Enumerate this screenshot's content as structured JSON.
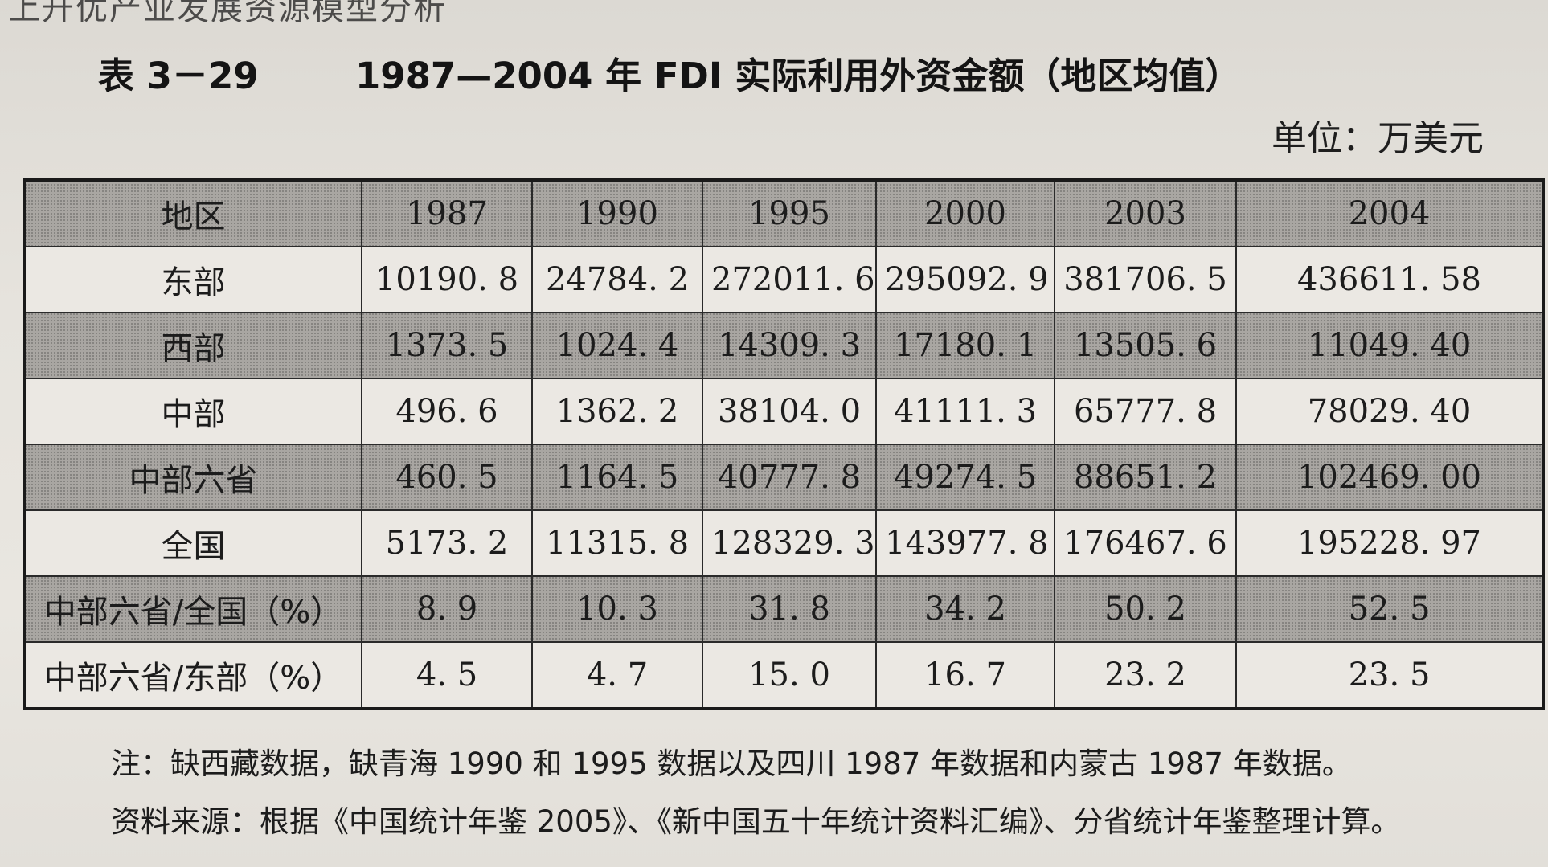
{
  "top_fragment": "上升优产业发展资源模型分析",
  "title": {
    "number": "表 3－29",
    "text": "1987—2004 年 FDI 实际利用外资金额（地区均值）"
  },
  "unit": "单位：万美元",
  "table": {
    "headers": [
      "地区",
      "1987",
      "1990",
      "1995",
      "2000",
      "2003",
      "2004"
    ],
    "rows": [
      {
        "region": "东部",
        "values": [
          "10190. 8",
          "24784. 2",
          "272011. 6",
          "295092. 9",
          "381706. 5",
          "436611. 58"
        ]
      },
      {
        "region": "西部",
        "values": [
          "1373. 5",
          "1024. 4",
          "14309. 3",
          "17180. 1",
          "13505. 6",
          "11049. 40"
        ]
      },
      {
        "region": "中部",
        "values": [
          "496. 6",
          "1362. 2",
          "38104. 0",
          "41111. 3",
          "65777. 8",
          "78029. 40"
        ]
      },
      {
        "region": "中部六省",
        "values": [
          "460. 5",
          "1164. 5",
          "40777. 8",
          "49274. 5",
          "88651. 2",
          "102469. 00"
        ]
      },
      {
        "region": "全国",
        "values": [
          "5173. 2",
          "11315. 8",
          "128329. 3",
          "143977. 8",
          "176467. 6",
          "195228. 97"
        ]
      },
      {
        "region": "中部六省/全国（%）",
        "values": [
          "8. 9",
          "10. 3",
          "31. 8",
          "34. 2",
          "50. 2",
          "52. 5"
        ]
      },
      {
        "region": "中部六省/东部（%）",
        "values": [
          "4. 5",
          "4. 7",
          "15. 0",
          "16. 7",
          "23. 2",
          "23. 5"
        ]
      }
    ]
  },
  "notes": {
    "note": "注：缺西藏数据，缺青海 1990 和 1995 数据以及四川 1987 年数据和内蒙古 1987 年数据。",
    "source": "资料来源：根据《中国统计年鉴 2005》、《新中国五十年统计资料汇编》、分省统计年鉴整理计算。"
  },
  "colors": {
    "shaded_row": "#a9a6a2",
    "plain_row": "#ebe8e3",
    "paper": "#e6e3dd"
  }
}
